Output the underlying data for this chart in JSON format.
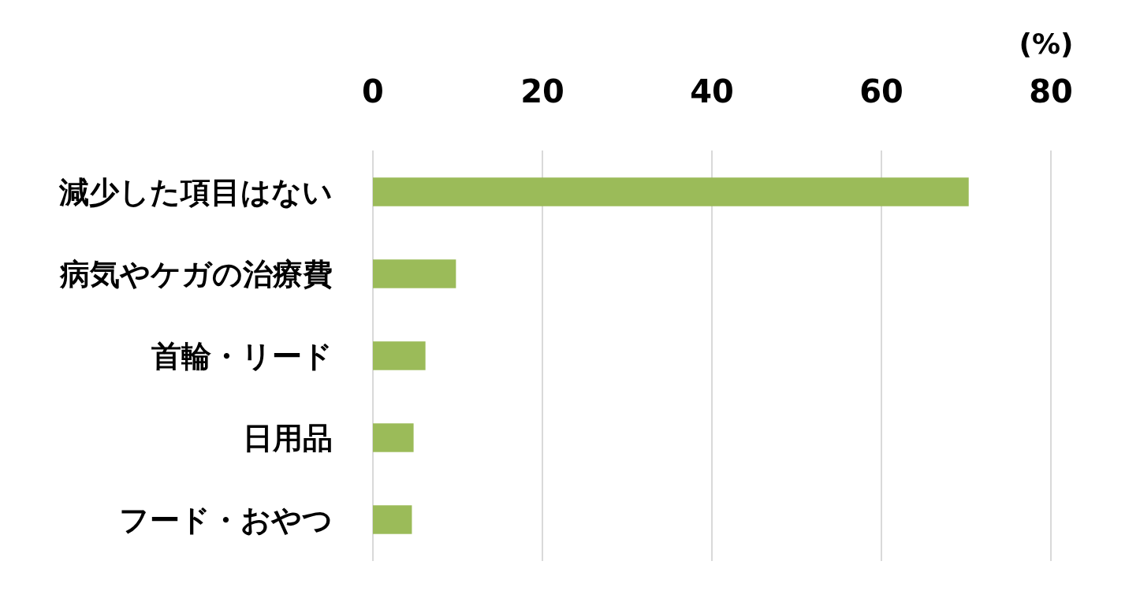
{
  "chart_data": {
    "type": "bar",
    "orientation": "horizontal",
    "categories": [
      "減少した項目はない",
      "病気やケガの治療費",
      "首輪・リード",
      "日用品",
      "フード・おやつ"
    ],
    "values": [
      70.3,
      9.8,
      6.2,
      4.8,
      4.6
    ],
    "color": "#9bbb59",
    "xlim": [
      0,
      80
    ],
    "xticks": [
      0,
      20,
      40,
      60,
      80
    ],
    "xlabel": "(%)",
    "grid": "x"
  }
}
